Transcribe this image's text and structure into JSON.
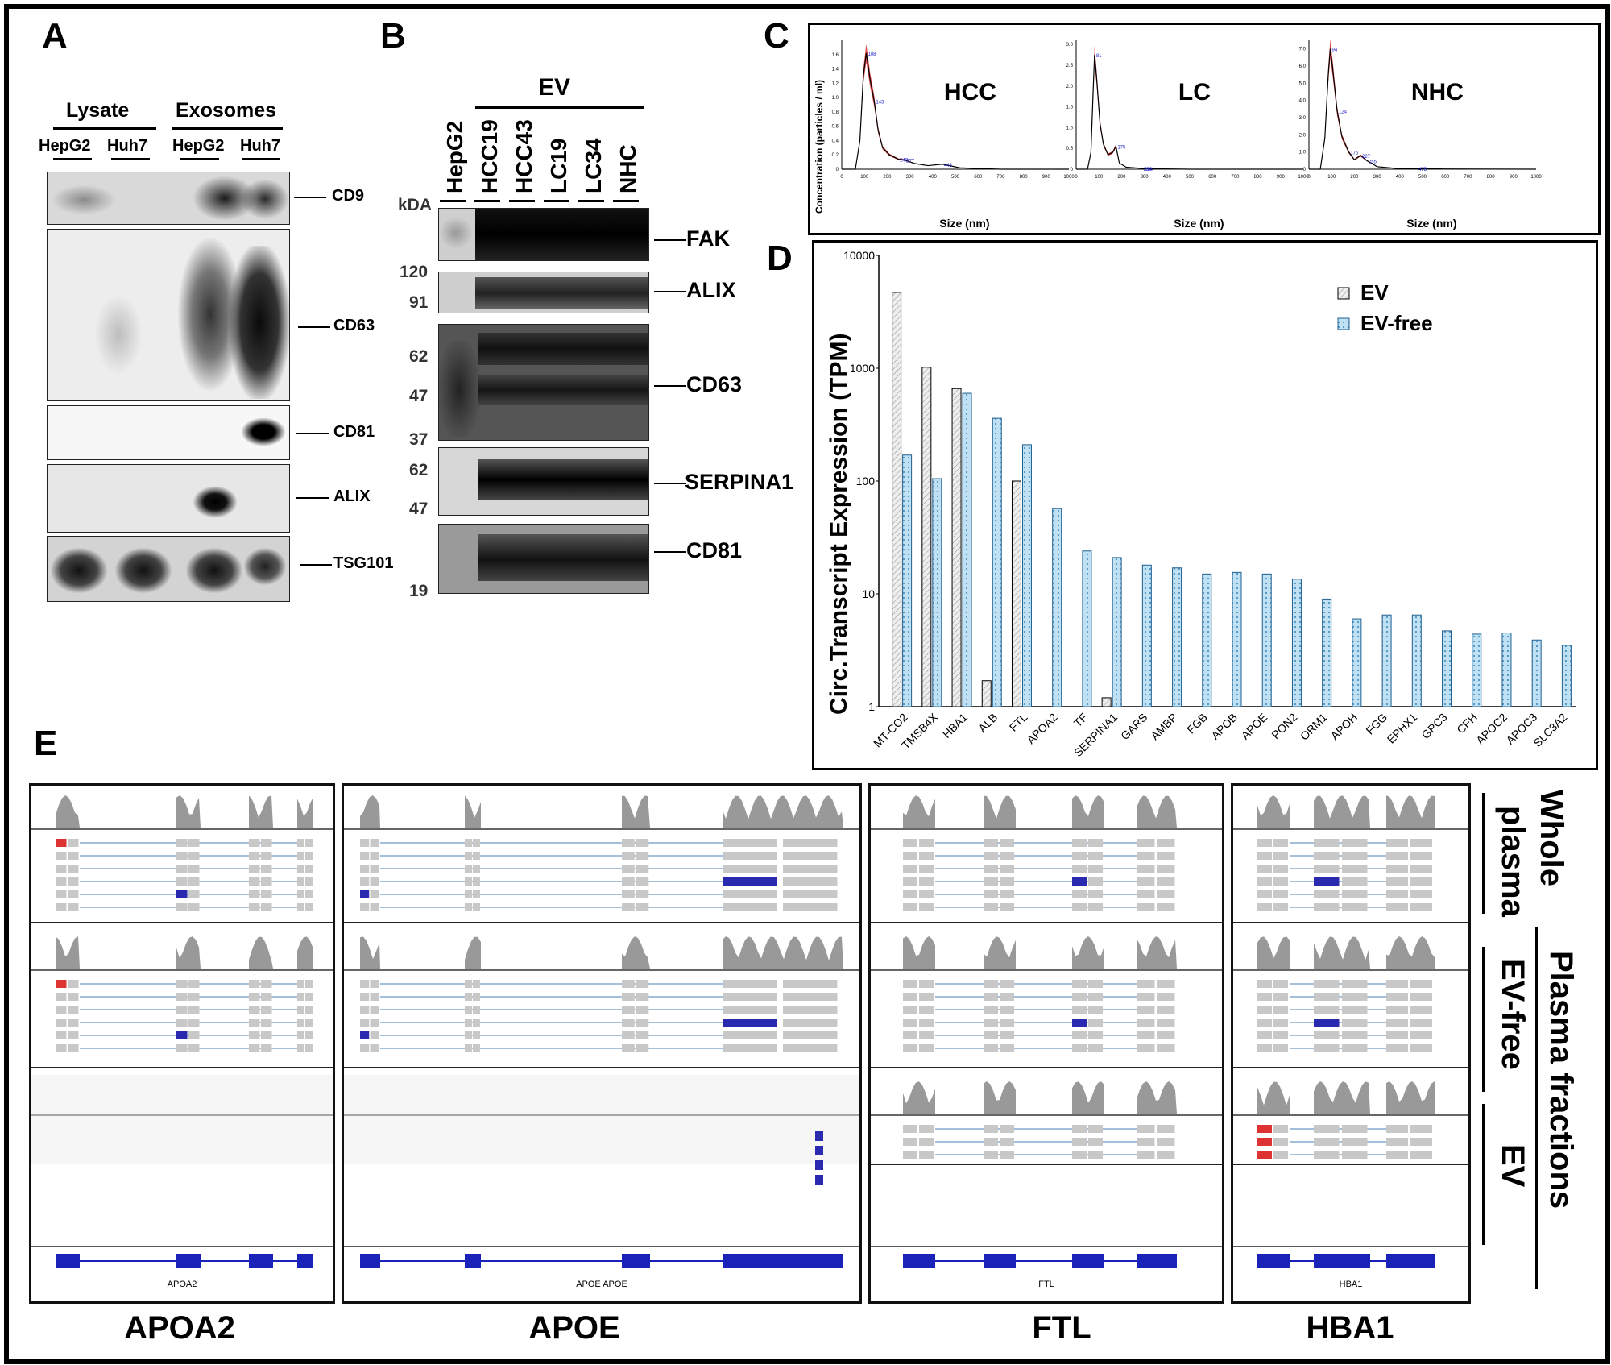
{
  "panel_labels": {
    "a": "A",
    "b": "B",
    "c": "C",
    "d": "D",
    "e": "E"
  },
  "panel_a": {
    "groups": [
      "Lysate",
      "Exosomes"
    ],
    "lanes": [
      "HepG2",
      "Huh7",
      "HepG2",
      "Huh7"
    ],
    "markers": [
      "CD9",
      "CD63",
      "CD81",
      "ALIX",
      "TSG101"
    ]
  },
  "panel_b": {
    "group": "EV",
    "lanes": [
      "HepG2",
      "HCC19",
      "HCC43",
      "LC19",
      "LC34",
      "NHC"
    ],
    "unit": "kDA",
    "mw_marks": [
      "120",
      "91",
      "62",
      "47",
      "37",
      "62",
      "47",
      "19"
    ],
    "markers": [
      "FAK",
      "ALIX",
      "CD63",
      "SERPINA1",
      "CD81"
    ]
  },
  "chart_data": [
    {
      "type": "line",
      "title": "HCC",
      "ylabel": "Concentration (particles / ml)",
      "xlabel": "Size (nm)",
      "xlim": [
        0,
        1000
      ],
      "ylim": [
        0,
        1.8
      ],
      "x_ticks": [
        "0",
        "100",
        "200",
        "300",
        "400",
        "500",
        "600",
        "700",
        "800",
        "900",
        "1000"
      ],
      "y_ticks": [
        "0",
        "0.2",
        "0.4",
        "0.6",
        "0.8",
        "1.0",
        "1.2",
        "1.4",
        "1.6"
      ],
      "peak_labels": [
        "108",
        "143",
        "249",
        "277",
        "443"
      ],
      "x": [
        0,
        60,
        80,
        95,
        108,
        125,
        143,
        160,
        180,
        210,
        249,
        277,
        320,
        380,
        443,
        520,
        600,
        700,
        1000
      ],
      "y": [
        0,
        0,
        0.4,
        1.3,
        1.62,
        1.25,
        0.95,
        0.55,
        0.3,
        0.2,
        0.14,
        0.13,
        0.08,
        0.05,
        0.07,
        0.02,
        0.01,
        0,
        0
      ],
      "series_color": "#d51414"
    },
    {
      "type": "line",
      "title": "LC",
      "xlabel": "Size (nm)",
      "xlim": [
        0,
        1000
      ],
      "ylim": [
        0,
        3.1
      ],
      "x_ticks": [
        "0",
        "100",
        "200",
        "300",
        "400",
        "500",
        "600",
        "700",
        "800",
        "900",
        "1000"
      ],
      "y_ticks": [
        "0",
        "0.5",
        "1.0",
        "1.5",
        "2.0",
        "2.5",
        "3.0"
      ],
      "peak_labels": [
        "81",
        "175",
        "290",
        "294"
      ],
      "x": [
        0,
        50,
        65,
        75,
        81,
        90,
        105,
        120,
        140,
        160,
        175,
        190,
        220,
        290,
        294,
        350,
        500,
        1000
      ],
      "y": [
        0,
        0,
        0.4,
        1.9,
        2.75,
        2.2,
        1.1,
        0.6,
        0.35,
        0.4,
        0.55,
        0.15,
        0.05,
        0.02,
        0.02,
        0.01,
        0,
        0
      ],
      "series_color": "#d51414"
    },
    {
      "type": "line",
      "title": "NHC",
      "xlabel": "Size (nm)",
      "xlim": [
        0,
        1000
      ],
      "ylim": [
        0,
        7.5
      ],
      "x_ticks": [
        "0",
        "100",
        "200",
        "300",
        "400",
        "500",
        "600",
        "700",
        "800",
        "900",
        "1000"
      ],
      "y_ticks": [
        "0",
        "1.0",
        "2.0",
        "3.0",
        "4.0",
        "5.0",
        "6.0",
        "7.0"
      ],
      "peak_labels": [
        "94",
        "124",
        "175",
        "227",
        "255",
        "475"
      ],
      "x": [
        0,
        50,
        70,
        85,
        94,
        105,
        124,
        145,
        175,
        200,
        227,
        255,
        300,
        400,
        475,
        600,
        1000
      ],
      "y": [
        0,
        0,
        1.8,
        5.5,
        7.0,
        5.8,
        3.4,
        1.9,
        1.0,
        0.55,
        0.8,
        0.5,
        0.15,
        0.03,
        0.04,
        0.01,
        0
      ],
      "series_color": "#d51414"
    },
    {
      "type": "bar",
      "ylabel": "Circ.Transcript Expression (TPM)",
      "yscale": "log",
      "ylim": [
        1,
        10000
      ],
      "y_ticks": [
        "1",
        "10",
        "100",
        "1000",
        "10000"
      ],
      "legend_position": "top-right",
      "categories": [
        "MT-CO2",
        "TMSB4X",
        "HBA1",
        "ALB",
        "FTL",
        "APOA2",
        "TF",
        "SERPINA1",
        "GARS",
        "AMBP",
        "FGB",
        "APOB",
        "APOE",
        "PON2",
        "ORM1",
        "APOH",
        "FGG",
        "EPHX1",
        "GPC3",
        "CFH",
        "APOC2",
        "APOC3",
        "SLC3A2"
      ],
      "series": [
        {
          "name": "EV",
          "values": [
            4700,
            1020,
            660,
            1.7,
            100,
            null,
            null,
            1.2,
            null,
            null,
            null,
            null,
            null,
            null,
            null,
            null,
            null,
            null,
            null,
            null,
            null,
            null,
            null
          ]
        },
        {
          "name": "EV-free",
          "values": [
            170,
            105,
            600,
            360,
            210,
            57,
            24,
            21,
            18,
            17,
            15,
            15.5,
            15,
            13.5,
            9,
            6,
            6.5,
            6.5,
            4.7,
            4.4,
            4.5,
            3.9,
            3.5
          ]
        }
      ]
    }
  ],
  "panel_e": {
    "genes": [
      "APOA2",
      "APOE",
      "FTL",
      "HBA1"
    ],
    "gene_track_labels": [
      "APOA2",
      "APOE   APOE",
      "FTL",
      "HBA1"
    ],
    "row_labels": {
      "whole": [
        "Whole",
        "plasma"
      ],
      "evfree": "EV-free",
      "ev": "EV",
      "fractions": "Plasma fractions"
    }
  }
}
